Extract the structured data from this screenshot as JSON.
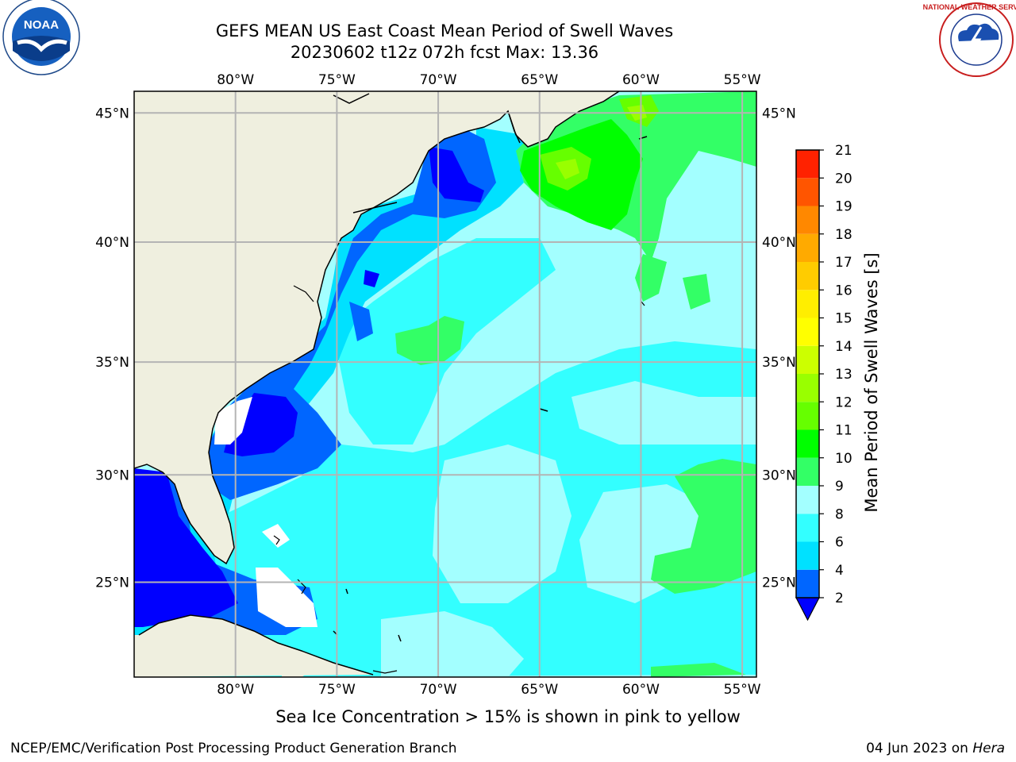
{
  "title": {
    "line1": "GEFS MEAN US East Coast Mean Period of Swell Waves",
    "line2": "20230602 t12z 072h fcst   Max: 13.36"
  },
  "logos": {
    "left": {
      "icon": "noaa-logo",
      "text": "NOAA"
    },
    "right": {
      "icon": "nws-logo",
      "text": "NATIONAL WEATHER SERVICE"
    }
  },
  "axes": {
    "lon_labels": [
      "80°W",
      "75°W",
      "70°W",
      "65°W",
      "60°W",
      "55°W"
    ],
    "lat_labels": [
      "45°N",
      "40°N",
      "35°N",
      "30°N",
      "25°N"
    ],
    "lon_range": [
      -85,
      -54.3
    ],
    "lat_range": [
      20.4,
      45.8
    ]
  },
  "colorbar": {
    "label": "Mean Period of Swell Waves [s]",
    "tick_labels": [
      "2",
      "4",
      "6",
      "8",
      "9",
      "10",
      "11",
      "12",
      "13",
      "14",
      "15",
      "16",
      "17",
      "18",
      "19",
      "20",
      "21"
    ],
    "colors": [
      "#0000ff",
      "#0066ff",
      "#00e1ff",
      "#33ffff",
      "#a3ffff",
      "#33ff66",
      "#00ff00",
      "#66ff00",
      "#99ff00",
      "#ccff00",
      "#ffff00",
      "#ffee00",
      "#ffcc00",
      "#ffaa00",
      "#ff8800",
      "#ff5500",
      "#ff2200",
      "#ff0000"
    ]
  },
  "colors": {
    "land": "#efefdf",
    "grid": "#b4b4b4",
    "coast": "#000000"
  },
  "footer": {
    "note": "Sea Ice Concentration > 15% is shown in pink to yellow",
    "left": "NCEP/EMC/Verification Post Processing Product Generation Branch",
    "right_date": "04 Jun 2023 on",
    "right_machine": "Hera"
  }
}
